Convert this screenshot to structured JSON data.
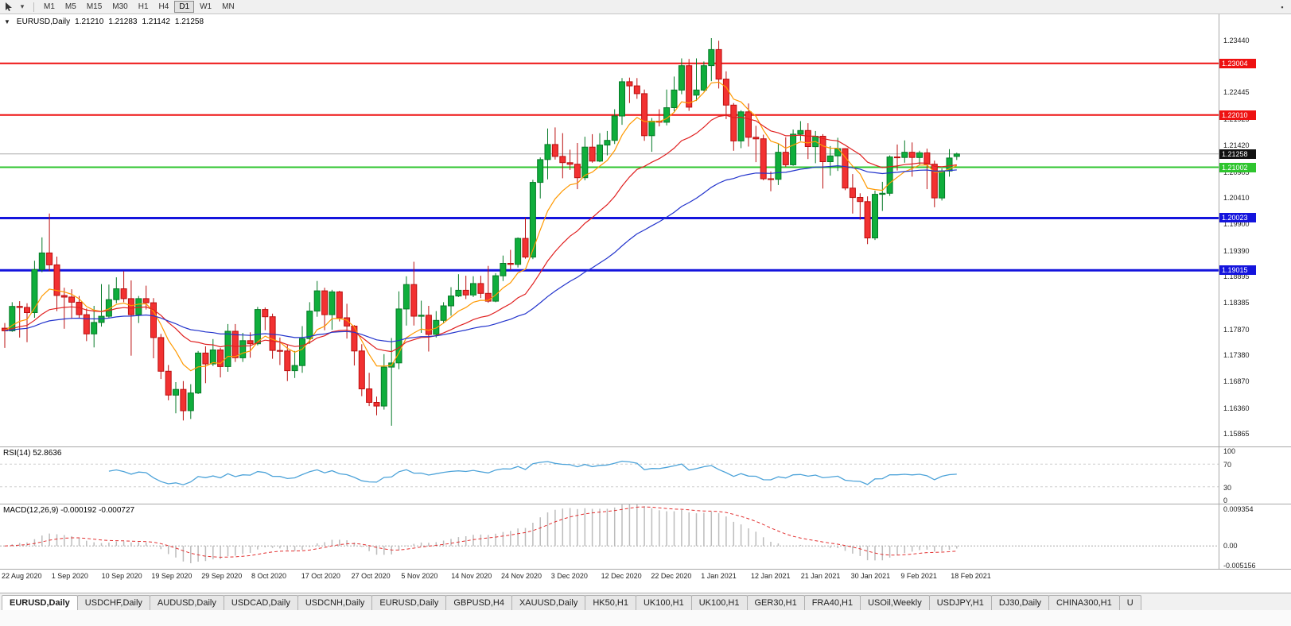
{
  "toolbar": {
    "timeframes": [
      "M1",
      "M5",
      "M15",
      "M30",
      "H1",
      "H4",
      "D1",
      "W1",
      "MN"
    ],
    "active_timeframe": "D1"
  },
  "tab_bar": {
    "active_index": 0,
    "tabs": [
      "EURUSD,Daily",
      "USDCHF,Daily",
      "AUDUSD,Daily",
      "USDCAD,Daily",
      "USDCNH,Daily",
      "EURUSD,Daily",
      "GBPUSD,H4",
      "XAUUSD,Daily",
      "HK50,H1",
      "UK100,H1",
      "UK100,H1",
      "GER30,H1",
      "FRA40,H1",
      "USOil,Weekly",
      "USDJPY,H1",
      "DJ30,Daily",
      "CHINA300,H1",
      "U"
    ]
  },
  "chart_data": {
    "type": "candlestick",
    "header": {
      "symbol": "EURUSD,Daily",
      "open": "1.21210",
      "high": "1.21283",
      "low": "1.21142",
      "close": "1.21258"
    },
    "price_ylim": [
      1.1562,
      1.2395
    ],
    "y_ticks": [
      1.2344,
      1.2295,
      1.22445,
      1.21925,
      1.2142,
      1.20905,
      1.2041,
      1.199,
      1.1939,
      1.18895,
      1.18385,
      1.1787,
      1.1738,
      1.1687,
      1.1636,
      1.15865
    ],
    "x_labels": [
      "22 Aug 2020",
      "1 Sep 2020",
      "10 Sep 2020",
      "19 Sep 2020",
      "29 Sep 2020",
      "8 Oct 2020",
      "17 Oct 2020",
      "27 Oct 2020",
      "5 Nov 2020",
      "14 Nov 2020",
      "24 Nov 2020",
      "3 Dec 2020",
      "12 Dec 2020",
      "22 Dec 2020",
      "1 Jan 2021",
      "12 Jan 2021",
      "21 Jan 2021",
      "30 Jan 2021",
      "9 Feb 2021",
      "18 Feb 2021"
    ],
    "hlines": [
      {
        "price": 1.23004,
        "label": "1.23004",
        "color": "#ee1111",
        "width": 2
      },
      {
        "price": 1.2201,
        "label": "1.22010",
        "color": "#ee1111",
        "width": 2
      },
      {
        "price": 1.21002,
        "label": "1.21002",
        "color": "#2ec52e",
        "width": 2
      },
      {
        "price": 1.20023,
        "label": "1.20023",
        "color": "#1414dd",
        "width": 3
      },
      {
        "price": 1.19015,
        "label": "1.19015",
        "color": "#1414dd",
        "width": 3
      }
    ],
    "current_price": {
      "price": 1.21258,
      "label": "1.21258",
      "line_color": "#ababab",
      "tag_bg": "#111111"
    },
    "candle_colors": {
      "up_fill": "#0fae3c",
      "up_stroke": "#067a27",
      "down_fill": "#f23131",
      "down_stroke": "#bb0f0f"
    },
    "moving_averages": [
      {
        "period": 8,
        "type": "ema",
        "color": "#ff9900"
      },
      {
        "period": 21,
        "type": "ema",
        "color": "#e02020"
      },
      {
        "period": 50,
        "type": "ema",
        "color": "#2233cc"
      }
    ],
    "candles": [
      [
        1.179,
        1.18,
        1.1752,
        1.1785
      ],
      [
        1.1785,
        1.184,
        1.1783,
        1.1832
      ],
      [
        1.1832,
        1.1842,
        1.1772,
        1.183
      ],
      [
        1.183,
        1.1838,
        1.1763,
        1.182
      ],
      [
        1.182,
        1.192,
        1.181,
        1.1903
      ],
      [
        1.1903,
        1.1965,
        1.1898,
        1.1935
      ],
      [
        1.1935,
        1.2011,
        1.19,
        1.1912
      ],
      [
        1.1912,
        1.1928,
        1.1823,
        1.1853
      ],
      [
        1.1853,
        1.1868,
        1.1789,
        1.185
      ],
      [
        1.185,
        1.1865,
        1.1808,
        1.184
      ],
      [
        1.184,
        1.1852,
        1.181,
        1.1816
      ],
      [
        1.1816,
        1.1828,
        1.1765,
        1.1779
      ],
      [
        1.1779,
        1.1833,
        1.1753,
        1.1801
      ],
      [
        1.1801,
        1.1875,
        1.1793,
        1.1813
      ],
      [
        1.1813,
        1.1874,
        1.1809,
        1.1845
      ],
      [
        1.1845,
        1.1888,
        1.1838,
        1.1866
      ],
      [
        1.1866,
        1.19,
        1.184,
        1.1847
      ],
      [
        1.1847,
        1.1882,
        1.1737,
        1.1816
      ],
      [
        1.1816,
        1.1852,
        1.18,
        1.1847
      ],
      [
        1.1847,
        1.1872,
        1.1826,
        1.1839
      ],
      [
        1.1839,
        1.1848,
        1.1732,
        1.1772
      ],
      [
        1.1772,
        1.1779,
        1.1692,
        1.1707
      ],
      [
        1.1707,
        1.1719,
        1.1651,
        1.1661
      ],
      [
        1.1661,
        1.1686,
        1.1626,
        1.1672
      ],
      [
        1.1672,
        1.1688,
        1.1612,
        1.1631
      ],
      [
        1.1631,
        1.1682,
        1.1615,
        1.1665
      ],
      [
        1.1665,
        1.1746,
        1.1663,
        1.1742
      ],
      [
        1.1742,
        1.1755,
        1.1684,
        1.1721
      ],
      [
        1.1721,
        1.1769,
        1.1717,
        1.1748
      ],
      [
        1.1748,
        1.1752,
        1.1695,
        1.1716
      ],
      [
        1.1716,
        1.1798,
        1.1706,
        1.1784
      ],
      [
        1.1784,
        1.1798,
        1.1725,
        1.1733
      ],
      [
        1.1733,
        1.1781,
        1.1725,
        1.1766
      ],
      [
        1.1766,
        1.1782,
        1.1733,
        1.176
      ],
      [
        1.176,
        1.1831,
        1.1757,
        1.1826
      ],
      [
        1.1826,
        1.183,
        1.1786,
        1.1812
      ],
      [
        1.1812,
        1.1818,
        1.1731,
        1.1747
      ],
      [
        1.1747,
        1.1772,
        1.1719,
        1.1746
      ],
      [
        1.1746,
        1.1758,
        1.1688,
        1.1708
      ],
      [
        1.1708,
        1.1746,
        1.1694,
        1.1718
      ],
      [
        1.1718,
        1.1794,
        1.1704,
        1.177
      ],
      [
        1.177,
        1.184,
        1.176,
        1.1823
      ],
      [
        1.1823,
        1.1881,
        1.1812,
        1.1862
      ],
      [
        1.1862,
        1.1868,
        1.1786,
        1.1816
      ],
      [
        1.1816,
        1.1864,
        1.1787,
        1.186
      ],
      [
        1.186,
        1.1862,
        1.1803,
        1.181
      ],
      [
        1.181,
        1.1837,
        1.177,
        1.1794
      ],
      [
        1.1794,
        1.1796,
        1.1718,
        1.1746
      ],
      [
        1.1746,
        1.1759,
        1.1659,
        1.1673
      ],
      [
        1.1673,
        1.1704,
        1.164,
        1.1647
      ],
      [
        1.1647,
        1.1658,
        1.1622,
        1.164
      ],
      [
        1.164,
        1.174,
        1.1633,
        1.1715
      ],
      [
        1.1715,
        1.1771,
        1.1602,
        1.1723
      ],
      [
        1.1723,
        1.1861,
        1.1711,
        1.1827
      ],
      [
        1.1827,
        1.189,
        1.1795,
        1.1874
      ],
      [
        1.1874,
        1.1918,
        1.1795,
        1.1813
      ],
      [
        1.1813,
        1.1843,
        1.1781,
        1.1815
      ],
      [
        1.1815,
        1.1833,
        1.1745,
        1.1778
      ],
      [
        1.1778,
        1.1823,
        1.1772,
        1.1805
      ],
      [
        1.1805,
        1.184,
        1.1799,
        1.1833
      ],
      [
        1.1833,
        1.1869,
        1.1814,
        1.1852
      ],
      [
        1.1852,
        1.1894,
        1.185,
        1.1863
      ],
      [
        1.1863,
        1.1891,
        1.1846,
        1.1854
      ],
      [
        1.1854,
        1.189,
        1.185,
        1.1876
      ],
      [
        1.1876,
        1.1891,
        1.1848,
        1.1857
      ],
      [
        1.1857,
        1.191,
        1.1839,
        1.1842
      ],
      [
        1.1842,
        1.1896,
        1.184,
        1.1891
      ],
      [
        1.1891,
        1.193,
        1.1881,
        1.1915
      ],
      [
        1.1915,
        1.1941,
        1.1902,
        1.1913
      ],
      [
        1.1913,
        1.1965,
        1.1907,
        1.1963
      ],
      [
        1.1963,
        1.2003,
        1.1924,
        1.1927
      ],
      [
        1.1927,
        1.2076,
        1.1923,
        1.2071
      ],
      [
        1.2071,
        1.2119,
        1.204,
        1.2115
      ],
      [
        1.2115,
        1.2175,
        1.2077,
        1.2144
      ],
      [
        1.2144,
        1.2177,
        1.2115,
        1.2121
      ],
      [
        1.2121,
        1.2166,
        1.2079,
        1.2109
      ],
      [
        1.2109,
        1.2134,
        1.2095,
        1.2106
      ],
      [
        1.2106,
        1.2147,
        1.2058,
        1.208
      ],
      [
        1.208,
        1.2159,
        1.2075,
        1.2139
      ],
      [
        1.2139,
        1.2164,
        1.2109,
        1.2112
      ],
      [
        1.2112,
        1.2166,
        1.211,
        1.2143
      ],
      [
        1.2143,
        1.217,
        1.2123,
        1.2152
      ],
      [
        1.2152,
        1.2212,
        1.2145,
        1.2199
      ],
      [
        1.2199,
        1.2272,
        1.2182,
        1.2265
      ],
      [
        1.2265,
        1.2273,
        1.2224,
        1.2257
      ],
      [
        1.2257,
        1.2272,
        1.2232,
        1.2242
      ],
      [
        1.2242,
        1.225,
        1.2151,
        1.2161
      ],
      [
        1.2161,
        1.2195,
        1.213,
        1.2189
      ],
      [
        1.2189,
        1.2212,
        1.2179,
        1.2187
      ],
      [
        1.2187,
        1.225,
        1.2181,
        1.2215
      ],
      [
        1.2215,
        1.2275,
        1.2208,
        1.2249
      ],
      [
        1.2249,
        1.231,
        1.2241,
        1.2296
      ],
      [
        1.2296,
        1.2309,
        1.2209,
        1.2216
      ],
      [
        1.2239,
        1.231,
        1.2228,
        1.2249
      ],
      [
        1.2249,
        1.2304,
        1.2247,
        1.2296
      ],
      [
        1.2296,
        1.2349,
        1.2266,
        1.2327
      ],
      [
        1.2327,
        1.2344,
        1.2252,
        1.227
      ],
      [
        1.227,
        1.2285,
        1.2193,
        1.222
      ],
      [
        1.222,
        1.2224,
        1.2132,
        1.2151
      ],
      [
        1.2151,
        1.221,
        1.2137,
        1.2207
      ],
      [
        1.2207,
        1.2223,
        1.214,
        1.2158
      ],
      [
        1.2158,
        1.218,
        1.211,
        1.2155
      ],
      [
        1.2155,
        1.2163,
        1.2075,
        1.2078
      ],
      [
        1.2078,
        1.2092,
        1.2054,
        1.2077
      ],
      [
        1.2077,
        1.2145,
        1.2066,
        1.2129
      ],
      [
        1.2129,
        1.2158,
        1.2101,
        1.2105
      ],
      [
        1.2105,
        1.2173,
        1.2103,
        1.2164
      ],
      [
        1.2164,
        1.2189,
        1.2151,
        1.2171
      ],
      [
        1.2171,
        1.2185,
        1.2116,
        1.214
      ],
      [
        1.214,
        1.217,
        1.2108,
        1.216
      ],
      [
        1.216,
        1.2164,
        1.2059,
        1.2111
      ],
      [
        1.2111,
        1.2141,
        1.2084,
        1.2122
      ],
      [
        1.2122,
        1.2157,
        1.2093,
        1.2136
      ],
      [
        1.2136,
        1.2137,
        1.2056,
        1.206
      ],
      [
        1.206,
        1.2087,
        1.2011,
        1.2042
      ],
      [
        1.2042,
        1.205,
        1.1999,
        1.2034
      ],
      [
        1.2034,
        1.2044,
        1.1952,
        1.1964
      ],
      [
        1.1964,
        1.2055,
        1.196,
        1.2048
      ],
      [
        1.2048,
        1.2072,
        1.2016,
        1.205
      ],
      [
        1.205,
        1.2123,
        1.2045,
        1.212
      ],
      [
        1.212,
        1.2144,
        1.2094,
        1.2119
      ],
      [
        1.2119,
        1.2152,
        1.2109,
        1.2129
      ],
      [
        1.2129,
        1.2148,
        1.2082,
        1.2119
      ],
      [
        1.2119,
        1.2132,
        1.2104,
        1.2128
      ],
      [
        1.2128,
        1.2136,
        1.2058,
        1.2106
      ],
      [
        1.2106,
        1.2113,
        1.2023,
        1.2041
      ],
      [
        1.2041,
        1.2098,
        1.2036,
        1.2093
      ],
      [
        1.2093,
        1.2135,
        1.2082,
        1.2118
      ],
      [
        1.2121,
        1.21283,
        1.21142,
        1.21258
      ]
    ],
    "rsi": {
      "period": 14,
      "value_label": "RSI(14) 52.8636",
      "ylim": [
        0,
        100
      ],
      "levels": [
        100,
        70,
        30,
        0
      ],
      "level_lines": [
        70,
        30
      ],
      "color": "#4da3d9"
    },
    "macd": {
      "params": "12,26,9",
      "value_label": "MACD(12,26,9) -0.000192 -0.000727",
      "ylim": [
        -0.005156,
        0.009354
      ],
      "y_tick_labels": [
        "0.009354",
        "0.00",
        "-0.005156"
      ],
      "hist_color": "#bcbcbc",
      "signal_color": "#e23030"
    }
  }
}
